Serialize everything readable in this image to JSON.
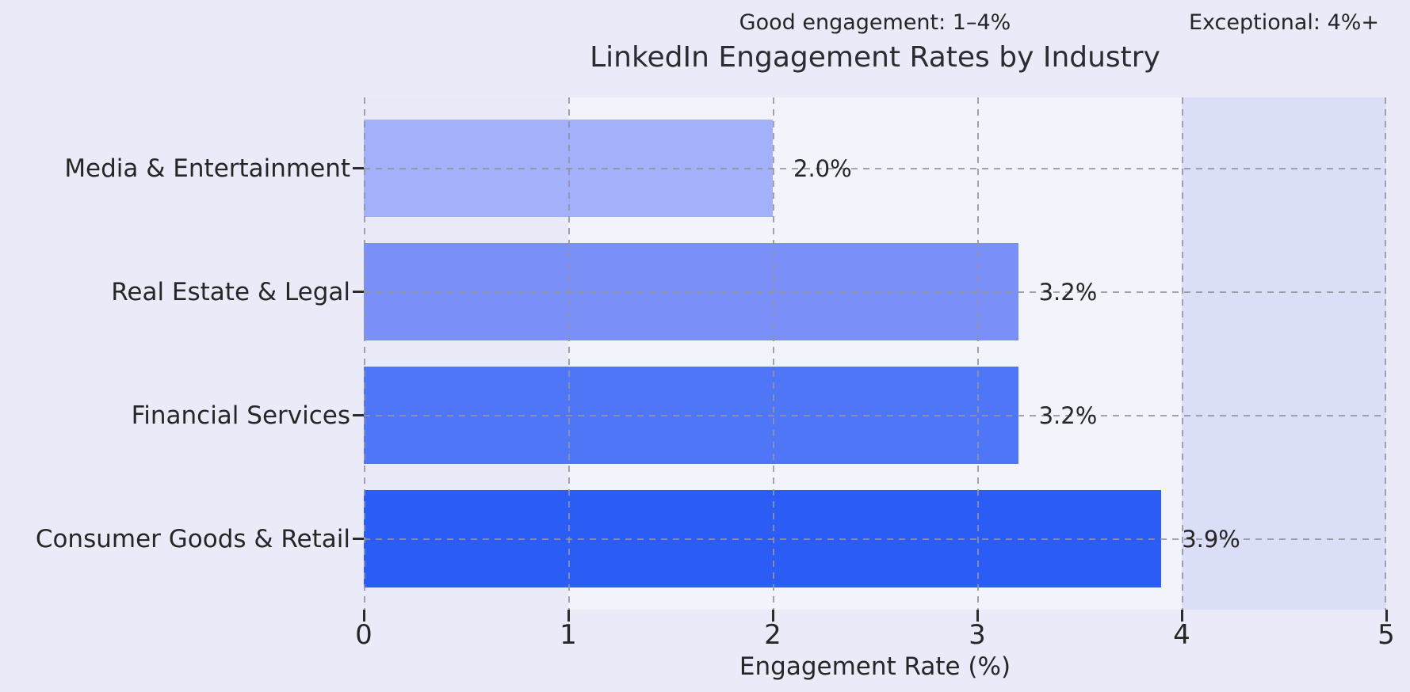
{
  "figure": {
    "title": "LinkedIn Engagement Rates by Industry",
    "annotation_good": "Good engagement: 1–4%",
    "annotation_exceptional": "Exceptional: 4%+"
  },
  "chart_data": {
    "type": "bar",
    "orientation": "horizontal",
    "title": "LinkedIn Engagement Rates by Industry",
    "xlabel": "Engagement Rate (%)",
    "categories": [
      "Media & Entertainment",
      "Real Estate & Legal",
      "Financial Services",
      "Consumer Goods & Retail"
    ],
    "values": [
      2.0,
      3.2,
      3.2,
      3.9
    ],
    "value_labels": [
      "2.0%",
      "3.2%",
      "3.2%",
      "3.9%"
    ],
    "bar_colors": [
      "#a3b1fa",
      "#7a90f8",
      "#4f76f7",
      "#2b5cf5"
    ],
    "xlim": [
      0,
      5
    ],
    "xticks": [
      "0",
      "1",
      "2",
      "3",
      "4",
      "5"
    ],
    "grid": "dashed, both axes, drawn above bars",
    "legend": "none",
    "bands": [
      {
        "from": 1,
        "to": 4,
        "color": "#f3f3fc",
        "meaning": "Good engagement: 1–4%"
      },
      {
        "from": 4,
        "to": 5,
        "color": "#dbdef7",
        "meaning": "Exceptional: 4%+"
      }
    ],
    "colors": {
      "figure_background": "#eaeaf9",
      "gridline": "#9294a0",
      "text": "#262626",
      "tick_mark": "#2b2b2b"
    }
  }
}
